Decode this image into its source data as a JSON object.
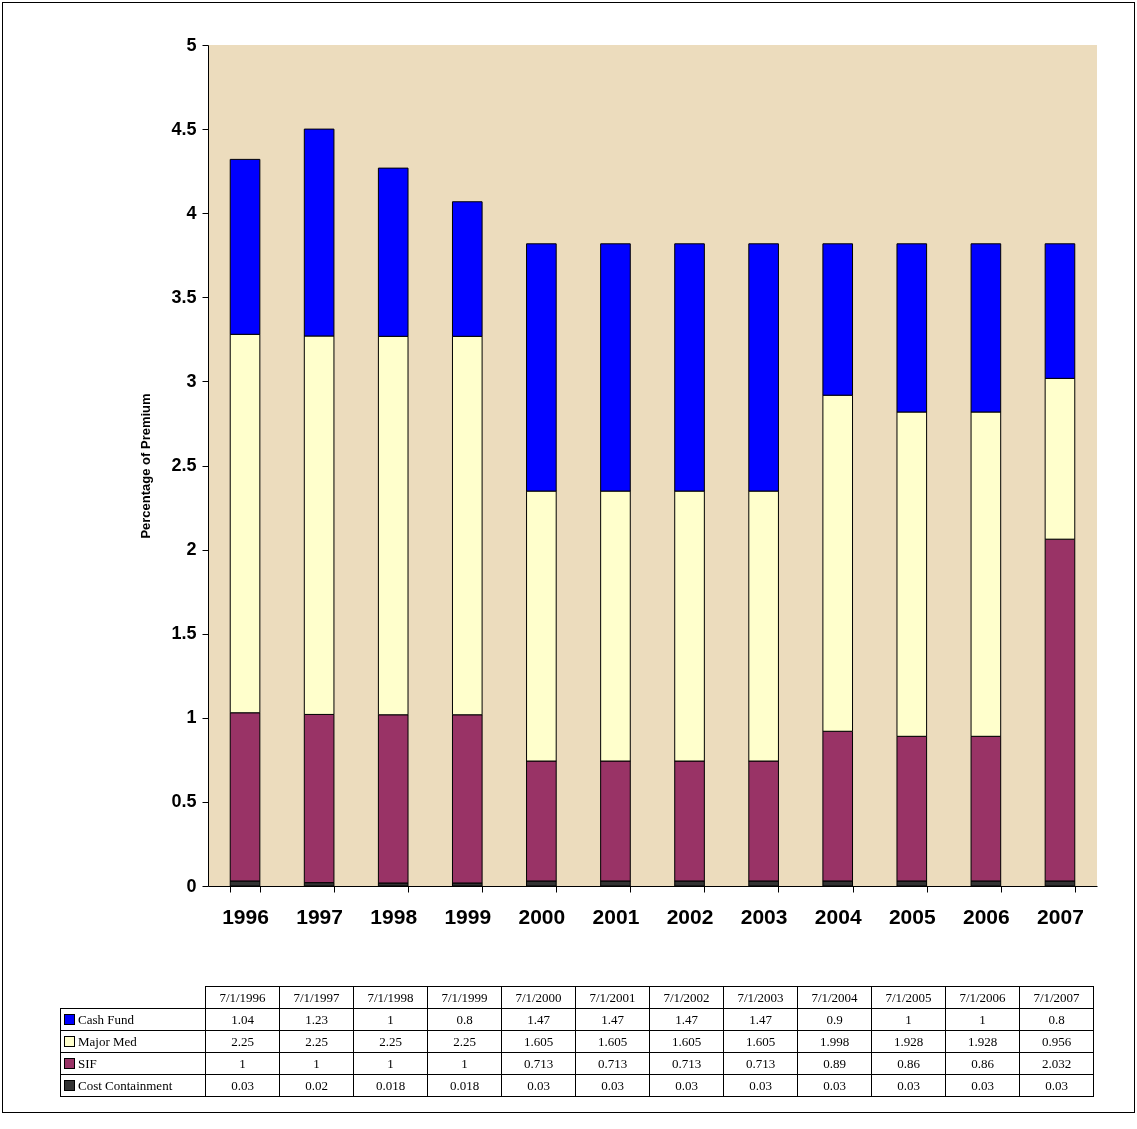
{
  "chart_data": {
    "type": "bar",
    "stacked": true,
    "ylabel": "Percentage of Premium",
    "categories": [
      "1996",
      "1997",
      "1998",
      "1999",
      "2000",
      "2001",
      "2002",
      "2003",
      "2004",
      "2005",
      "2006",
      "2007"
    ],
    "series": [
      {
        "name": "Cost Containment",
        "color": "#333333",
        "values": [
          0.03,
          0.02,
          0.018,
          0.018,
          0.03,
          0.03,
          0.03,
          0.03,
          0.03,
          0.03,
          0.03,
          0.03
        ]
      },
      {
        "name": "SIF",
        "color": "#993366",
        "values": [
          1,
          1,
          1,
          1,
          0.713,
          0.713,
          0.713,
          0.713,
          0.89,
          0.86,
          0.86,
          2.032
        ]
      },
      {
        "name": "Major Med",
        "color": "#ffffcc",
        "values": [
          2.25,
          2.25,
          2.25,
          2.25,
          1.605,
          1.605,
          1.605,
          1.605,
          1.998,
          1.928,
          1.928,
          0.956
        ]
      },
      {
        "name": "Cash Fund",
        "color": "#0000ff",
        "values": [
          1.04,
          1.23,
          1,
          0.8,
          1.47,
          1.47,
          1.47,
          1.47,
          0.9,
          1,
          1,
          0.8
        ]
      }
    ],
    "ylim": [
      0,
      5
    ],
    "yticks": [
      0,
      0.5,
      1,
      1.5,
      2,
      2.5,
      3,
      3.5,
      4,
      4.5,
      5
    ],
    "data_labels": true,
    "legend": "bottom",
    "annotations": [
      "7/1/1996",
      "7/1/1997",
      "7/1/1998",
      "7/1/1999",
      "7/1/2000",
      "7/1/2001",
      "7/1/2002",
      "7/1/2003",
      "7/1/2004",
      "7/1/2005",
      "7/1/2006",
      "7/1/2007"
    ]
  }
}
